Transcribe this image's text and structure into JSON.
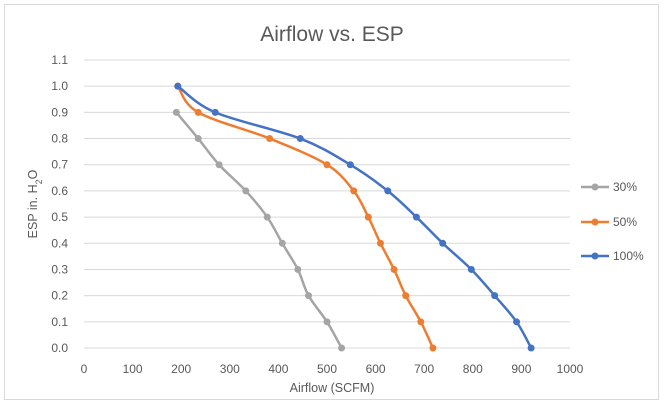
{
  "chart_data": {
    "type": "line",
    "title": "Airflow vs. ESP",
    "xlabel": "Airflow (SCFM)",
    "ylabel": {
      "prefix": "ESP in. H",
      "subscript": "2",
      "suffix": "O"
    },
    "xlim": [
      0,
      1000
    ],
    "ylim": [
      0,
      1.1
    ],
    "x_ticks": [
      "0",
      "100",
      "200",
      "300",
      "400",
      "500",
      "600",
      "700",
      "800",
      "900",
      "1000"
    ],
    "y_ticks": [
      "0.0",
      "0.1",
      "0.2",
      "0.3",
      "0.4",
      "0.5",
      "0.6",
      "0.7",
      "0.8",
      "0.9",
      "1.0",
      "1.1"
    ],
    "grid": "horizontal",
    "legend_position": "right",
    "series": [
      {
        "name": "30%",
        "color": "#a5a5a5",
        "points": [
          [
            190,
            0.9
          ],
          [
            235,
            0.8
          ],
          [
            278,
            0.7
          ],
          [
            333,
            0.6
          ],
          [
            377,
            0.5
          ],
          [
            408,
            0.4
          ],
          [
            440,
            0.3
          ],
          [
            462,
            0.2
          ],
          [
            500,
            0.1
          ],
          [
            530,
            0.0
          ]
        ]
      },
      {
        "name": "50%",
        "color": "#ed7d31",
        "points": [
          [
            193,
            1.0
          ],
          [
            235,
            0.9
          ],
          [
            382,
            0.8
          ],
          [
            500,
            0.7
          ],
          [
            555,
            0.6
          ],
          [
            585,
            0.5
          ],
          [
            610,
            0.4
          ],
          [
            638,
            0.3
          ],
          [
            662,
            0.2
          ],
          [
            693,
            0.1
          ],
          [
            718,
            0.0
          ]
        ]
      },
      {
        "name": "100%",
        "color": "#4472c4",
        "points": [
          [
            193,
            1.0
          ],
          [
            270,
            0.9
          ],
          [
            445,
            0.8
          ],
          [
            548,
            0.7
          ],
          [
            625,
            0.6
          ],
          [
            684,
            0.5
          ],
          [
            738,
            0.4
          ],
          [
            797,
            0.3
          ],
          [
            845,
            0.2
          ],
          [
            890,
            0.1
          ],
          [
            920,
            0.0
          ]
        ]
      }
    ]
  }
}
